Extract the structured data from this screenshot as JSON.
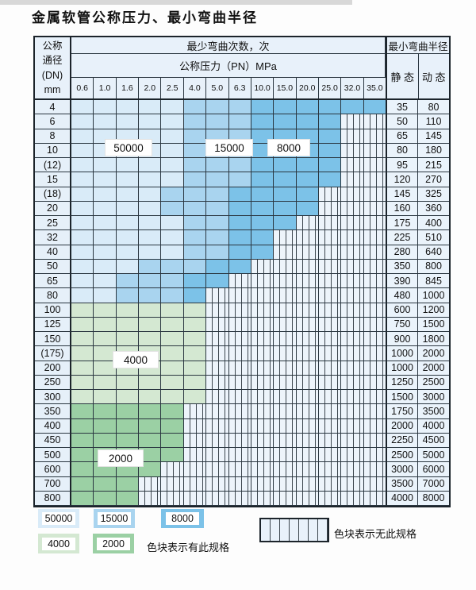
{
  "title": "金属软管公称压力、最小弯曲半径",
  "header": {
    "dn_label_lines": [
      "公称",
      "通径",
      "(DN)",
      "mm"
    ],
    "bend_cycles_label": "最少弯曲次数，次",
    "pressure_label": "公称压力（PN）MPa",
    "pressure_columns": [
      "0.6",
      "1.0",
      "1.6",
      "2.0",
      "2.5",
      "4.0",
      "5.0",
      "6.3",
      "10.0",
      "15.0",
      "20.0",
      "25.0",
      "32.0",
      "35.0"
    ],
    "radius_label": "最小弯曲半径",
    "static_label": "静 态",
    "dynamic_label": "动 态"
  },
  "overlays": {
    "o50000": "50000",
    "o15000": "15000",
    "o8000": "8000",
    "o4000": "4000",
    "o2000": "2000"
  },
  "legend": {
    "swatches": [
      {
        "text": "50000",
        "color": "#d9ebf8"
      },
      {
        "text": "15000",
        "color": "#a9d4ef"
      },
      {
        "text": "8000",
        "color": "#7cc2e8"
      },
      {
        "text": "4000",
        "color": "#d4e8d2"
      },
      {
        "text": "2000",
        "color": "#9bd0a4"
      }
    ],
    "has_spec_note": "色块表示有此规格",
    "no_spec_note": "色块表示无此规格"
  },
  "chart_data": {
    "type": "table",
    "title": "金属软管公称压力、最小弯曲半径",
    "column_axis_label": "公称压力（PN）MPa",
    "columns_pn_mpa": [
      0.6,
      1.0,
      1.6,
      2.0,
      2.5,
      4.0,
      5.0,
      6.3,
      10.0,
      15.0,
      20.0,
      25.0,
      32.0,
      35.0
    ],
    "row_axis_label": "公称通径 (DN) mm",
    "cell_meaning": "最少弯曲次数 (次) available at that 公称压力; 0 = 无此规格 (hatched)",
    "bend_cycle_grades": [
      50000,
      15000,
      8000,
      4000,
      2000
    ],
    "radius_columns": [
      "静 态",
      "动 态"
    ],
    "rows": [
      {
        "dn": "4",
        "cells": [
          50000,
          50000,
          50000,
          50000,
          50000,
          15000,
          15000,
          15000,
          8000,
          8000,
          8000,
          8000,
          8000,
          8000
        ],
        "static_radius": "35",
        "dynamic_radius": "80"
      },
      {
        "dn": "6",
        "cells": [
          50000,
          50000,
          50000,
          50000,
          50000,
          15000,
          15000,
          15000,
          8000,
          8000,
          8000,
          8000,
          0,
          0
        ],
        "static_radius": "50",
        "dynamic_radius": "110"
      },
      {
        "dn": "8",
        "cells": [
          50000,
          50000,
          50000,
          50000,
          50000,
          15000,
          15000,
          15000,
          8000,
          8000,
          8000,
          8000,
          0,
          0
        ],
        "static_radius": "65",
        "dynamic_radius": "145"
      },
      {
        "dn": "10",
        "cells": [
          50000,
          50000,
          50000,
          50000,
          50000,
          15000,
          15000,
          15000,
          8000,
          8000,
          8000,
          8000,
          0,
          0
        ],
        "static_radius": "80",
        "dynamic_radius": "180"
      },
      {
        "dn": "(12)",
        "cells": [
          50000,
          50000,
          50000,
          50000,
          50000,
          15000,
          15000,
          15000,
          8000,
          8000,
          8000,
          8000,
          0,
          0
        ],
        "static_radius": "95",
        "dynamic_radius": "215"
      },
      {
        "dn": "15",
        "cells": [
          50000,
          50000,
          50000,
          50000,
          50000,
          15000,
          15000,
          15000,
          8000,
          8000,
          8000,
          8000,
          0,
          0
        ],
        "static_radius": "120",
        "dynamic_radius": "270"
      },
      {
        "dn": "(18)",
        "cells": [
          50000,
          50000,
          50000,
          50000,
          15000,
          15000,
          15000,
          8000,
          8000,
          8000,
          8000,
          0,
          0,
          0
        ],
        "static_radius": "145",
        "dynamic_radius": "325"
      },
      {
        "dn": "20",
        "cells": [
          50000,
          50000,
          50000,
          50000,
          15000,
          15000,
          15000,
          8000,
          8000,
          8000,
          8000,
          0,
          0,
          0
        ],
        "static_radius": "160",
        "dynamic_radius": "360"
      },
      {
        "dn": "25",
        "cells": [
          50000,
          50000,
          50000,
          50000,
          50000,
          15000,
          15000,
          8000,
          8000,
          8000,
          0,
          0,
          0,
          0
        ],
        "static_radius": "175",
        "dynamic_radius": "400"
      },
      {
        "dn": "32",
        "cells": [
          50000,
          50000,
          50000,
          50000,
          50000,
          15000,
          15000,
          8000,
          8000,
          0,
          0,
          0,
          0,
          0
        ],
        "static_radius": "225",
        "dynamic_radius": "510"
      },
      {
        "dn": "40",
        "cells": [
          50000,
          50000,
          50000,
          50000,
          50000,
          15000,
          15000,
          8000,
          8000,
          0,
          0,
          0,
          0,
          0
        ],
        "static_radius": "280",
        "dynamic_radius": "640"
      },
      {
        "dn": "50",
        "cells": [
          50000,
          50000,
          50000,
          15000,
          15000,
          15000,
          8000,
          8000,
          0,
          0,
          0,
          0,
          0,
          0
        ],
        "static_radius": "350",
        "dynamic_radius": "800"
      },
      {
        "dn": "65",
        "cells": [
          50000,
          50000,
          15000,
          15000,
          15000,
          8000,
          8000,
          0,
          0,
          0,
          0,
          0,
          0,
          0
        ],
        "static_radius": "390",
        "dynamic_radius": "845"
      },
      {
        "dn": "80",
        "cells": [
          50000,
          50000,
          15000,
          15000,
          15000,
          8000,
          0,
          0,
          0,
          0,
          0,
          0,
          0,
          0
        ],
        "static_radius": "480",
        "dynamic_radius": "1000"
      },
      {
        "dn": "100",
        "cells": [
          4000,
          4000,
          4000,
          4000,
          4000,
          4000,
          0,
          0,
          0,
          0,
          0,
          0,
          0,
          0
        ],
        "static_radius": "600",
        "dynamic_radius": "1200"
      },
      {
        "dn": "125",
        "cells": [
          4000,
          4000,
          4000,
          4000,
          4000,
          4000,
          0,
          0,
          0,
          0,
          0,
          0,
          0,
          0
        ],
        "static_radius": "750",
        "dynamic_radius": "1500"
      },
      {
        "dn": "150",
        "cells": [
          4000,
          4000,
          4000,
          4000,
          4000,
          4000,
          0,
          0,
          0,
          0,
          0,
          0,
          0,
          0
        ],
        "static_radius": "900",
        "dynamic_radius": "1800"
      },
      {
        "dn": "(175)",
        "cells": [
          4000,
          4000,
          4000,
          4000,
          4000,
          4000,
          0,
          0,
          0,
          0,
          0,
          0,
          0,
          0
        ],
        "static_radius": "1000",
        "dynamic_radius": "2000"
      },
      {
        "dn": "200",
        "cells": [
          4000,
          4000,
          4000,
          4000,
          4000,
          4000,
          0,
          0,
          0,
          0,
          0,
          0,
          0,
          0
        ],
        "static_radius": "1000",
        "dynamic_radius": "2000"
      },
      {
        "dn": "250",
        "cells": [
          4000,
          4000,
          4000,
          4000,
          4000,
          4000,
          0,
          0,
          0,
          0,
          0,
          0,
          0,
          0
        ],
        "static_radius": "1250",
        "dynamic_radius": "2500"
      },
      {
        "dn": "300",
        "cells": [
          4000,
          4000,
          4000,
          4000,
          4000,
          4000,
          0,
          0,
          0,
          0,
          0,
          0,
          0,
          0
        ],
        "static_radius": "1500",
        "dynamic_radius": "3000"
      },
      {
        "dn": "350",
        "cells": [
          2000,
          2000,
          2000,
          2000,
          2000,
          0,
          0,
          0,
          0,
          0,
          0,
          0,
          0,
          0
        ],
        "static_radius": "1750",
        "dynamic_radius": "3500"
      },
      {
        "dn": "400",
        "cells": [
          2000,
          2000,
          2000,
          2000,
          2000,
          0,
          0,
          0,
          0,
          0,
          0,
          0,
          0,
          0
        ],
        "static_radius": "2000",
        "dynamic_radius": "4000"
      },
      {
        "dn": "450",
        "cells": [
          2000,
          2000,
          2000,
          2000,
          2000,
          0,
          0,
          0,
          0,
          0,
          0,
          0,
          0,
          0
        ],
        "static_radius": "2250",
        "dynamic_radius": "4500"
      },
      {
        "dn": "500",
        "cells": [
          2000,
          2000,
          2000,
          2000,
          2000,
          0,
          0,
          0,
          0,
          0,
          0,
          0,
          0,
          0
        ],
        "static_radius": "2500",
        "dynamic_radius": "5000"
      },
      {
        "dn": "600",
        "cells": [
          2000,
          2000,
          2000,
          2000,
          0,
          0,
          0,
          0,
          0,
          0,
          0,
          0,
          0,
          0
        ],
        "static_radius": "3000",
        "dynamic_radius": "6000"
      },
      {
        "dn": "700",
        "cells": [
          2000,
          2000,
          2000,
          0,
          0,
          0,
          0,
          0,
          0,
          0,
          0,
          0,
          0,
          0
        ],
        "static_radius": "3500",
        "dynamic_radius": "7000"
      },
      {
        "dn": "800",
        "cells": [
          2000,
          2000,
          2000,
          0,
          0,
          0,
          0,
          0,
          0,
          0,
          0,
          0,
          0,
          0
        ],
        "static_radius": "4000",
        "dynamic_radius": "8000"
      }
    ]
  }
}
